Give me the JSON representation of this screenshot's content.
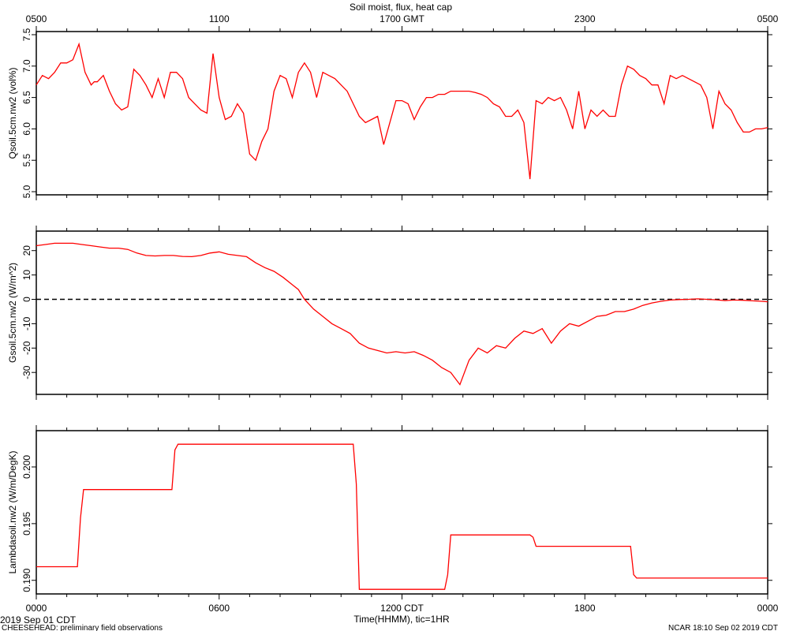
{
  "header": {
    "title": "Soil moist, flux, heat cap",
    "top_axis_ticks": [
      "0500",
      "1100",
      "1700 GMT",
      "2300",
      "0500"
    ]
  },
  "footer": {
    "date_label": "2019 Sep 01 CDT",
    "project_note": "CHEESEHEAD: preliminary field observations",
    "generated": "NCAR 18:10 Sep 02 2019 CDT",
    "x_axis_label": "Time(HHMM), tic=1HR"
  },
  "colors": {
    "series": "#ff0000",
    "axis": "#000000",
    "zero_line": "#000000"
  },
  "chart_data": [
    {
      "type": "line",
      "title": "Soil moist, flux, heat cap",
      "xlabel": "Time(HHMM), tic=1HR",
      "ylabel": "Qsoil.5cm.nw2 (vol%)",
      "xlim": [
        0,
        24
      ],
      "ylim": [
        4.95,
        7.55
      ],
      "yticks": [
        5.0,
        5.5,
        6.0,
        6.5,
        7.0,
        7.5
      ],
      "ytick_labels": [
        "5.0",
        "5.5",
        "6.0",
        "6.5",
        "7.0",
        "7.5"
      ],
      "x_units": "hours since 0000 CDT",
      "series": [
        {
          "x": [
            0,
            0.2,
            0.4,
            0.6,
            0.8,
            1.0,
            1.2,
            1.4,
            1.6,
            1.8,
            1.9,
            2.0,
            2.2,
            2.4,
            2.6,
            2.8,
            3.0,
            3.2,
            3.4,
            3.6,
            3.8,
            4.0,
            4.2,
            4.4,
            4.6,
            4.8,
            5.0,
            5.2,
            5.4,
            5.6,
            5.8,
            6.0,
            6.2,
            6.4,
            6.6,
            6.8,
            7.0,
            7.2,
            7.4,
            7.6,
            7.8,
            8.0,
            8.2,
            8.4,
            8.6,
            8.8,
            9.0,
            9.2,
            9.4,
            9.6,
            9.8,
            10.0,
            10.2,
            10.4,
            10.6,
            10.8,
            11.0,
            11.2,
            11.4,
            11.6,
            11.8,
            12.0,
            12.2,
            12.4,
            12.6,
            12.8,
            13.0,
            13.2,
            13.4,
            13.6,
            13.8,
            14.0,
            14.2,
            14.4,
            14.6,
            14.8,
            15.0,
            15.2,
            15.4,
            15.6,
            15.8,
            16.0,
            16.2,
            16.4,
            16.6,
            16.8,
            17.0,
            17.2,
            17.4,
            17.6,
            17.8,
            18.0,
            18.2,
            18.4,
            18.6,
            18.8,
            19.0,
            19.2,
            19.4,
            19.6,
            19.8,
            20.0,
            20.2,
            20.4,
            20.6,
            20.8,
            21.0,
            21.2,
            21.4,
            21.6,
            21.8,
            22.0,
            22.2,
            22.4,
            22.6,
            22.8,
            23.0,
            23.2,
            23.4,
            23.6,
            23.8,
            24.0
          ],
          "y": [
            6.7,
            6.85,
            6.8,
            6.9,
            7.05,
            7.05,
            7.1,
            7.35,
            6.9,
            6.7,
            6.75,
            6.75,
            6.85,
            6.6,
            6.4,
            6.3,
            6.35,
            6.95,
            6.85,
            6.7,
            6.5,
            6.8,
            6.5,
            6.9,
            6.9,
            6.8,
            6.5,
            6.4,
            6.3,
            6.25,
            7.2,
            6.5,
            6.15,
            6.2,
            6.4,
            6.25,
            5.6,
            5.5,
            5.8,
            6.0,
            6.6,
            6.85,
            6.8,
            6.5,
            6.9,
            7.05,
            6.9,
            6.5,
            6.9,
            6.85,
            6.8,
            6.7,
            6.6,
            6.4,
            6.2,
            6.1,
            6.15,
            6.2,
            5.75,
            6.1,
            6.45,
            6.45,
            6.4,
            6.15,
            6.35,
            6.5,
            6.5,
            6.55,
            6.55,
            6.6,
            6.6,
            6.6,
            6.6,
            6.58,
            6.55,
            6.5,
            6.4,
            6.35,
            6.2,
            6.2,
            6.3,
            6.1,
            5.2,
            6.45,
            6.4,
            6.5,
            6.45,
            6.5,
            6.3,
            6.0,
            6.6,
            6.0,
            6.3,
            6.2,
            6.3,
            6.2,
            6.2,
            6.7,
            7.0,
            6.95,
            6.85,
            6.8,
            6.7,
            6.7,
            6.4,
            6.85,
            6.8,
            6.85,
            6.8,
            6.75,
            6.7,
            6.5,
            6.0,
            6.6,
            6.4,
            6.3,
            6.1,
            5.95,
            5.95,
            6.0,
            6.0,
            6.02
          ]
        }
      ]
    },
    {
      "type": "line",
      "xlim": [
        0,
        24
      ],
      "ylim": [
        -39,
        28
      ],
      "ylabel": "Gsoil.5cm.nw2 (W/m^2)",
      "yticks": [
        -30,
        -20,
        -10,
        0,
        10,
        20
      ],
      "ytick_labels": [
        "-30",
        "-20",
        "-10",
        "0",
        "10",
        "20"
      ],
      "zero_line": true,
      "series": [
        {
          "x": [
            0,
            0.3,
            0.6,
            0.9,
            1.2,
            1.5,
            1.8,
            2.1,
            2.4,
            2.7,
            3.0,
            3.3,
            3.6,
            3.9,
            4.2,
            4.5,
            4.8,
            5.1,
            5.4,
            5.7,
            6.0,
            6.3,
            6.6,
            6.9,
            7.2,
            7.5,
            7.8,
            8.1,
            8.4,
            8.6,
            8.8,
            9.1,
            9.4,
            9.7,
            10.0,
            10.3,
            10.6,
            10.9,
            11.2,
            11.5,
            11.8,
            12.1,
            12.4,
            12.7,
            13.0,
            13.3,
            13.6,
            13.9,
            14.2,
            14.5,
            14.8,
            15.1,
            15.4,
            15.7,
            16.0,
            16.3,
            16.6,
            16.9,
            17.2,
            17.5,
            17.8,
            18.1,
            18.4,
            18.7,
            19.0,
            19.3,
            19.6,
            19.9,
            20.2,
            20.5,
            20.8,
            21.1,
            21.4,
            21.7,
            22.0,
            22.3,
            22.6,
            22.9,
            23.2,
            23.5,
            23.8,
            24.0
          ],
          "y": [
            22,
            22.5,
            23,
            23,
            23,
            22.5,
            22,
            21.5,
            21,
            21,
            20.5,
            19,
            18,
            17.8,
            18,
            18,
            17.6,
            17.5,
            18,
            19,
            19.5,
            18.5,
            18,
            17.5,
            15,
            13,
            11.5,
            9,
            6,
            4,
            0,
            -4,
            -7,
            -10,
            -12,
            -14,
            -18,
            -20,
            -21,
            -22,
            -21.5,
            -22,
            -21.5,
            -23,
            -25,
            -28,
            -30,
            -35,
            -25,
            -20,
            -22,
            -19,
            -20,
            -16,
            -13,
            -14,
            -12,
            -18,
            -13,
            -10,
            -11,
            -9,
            -7,
            -6.5,
            -5,
            -5,
            -4,
            -2.5,
            -1.5,
            -0.8,
            -0.3,
            -0.1,
            0,
            0.2,
            0,
            -0.2,
            -0.5,
            -0.3,
            -0.4,
            -0.6,
            -0.8,
            -1
          ]
        }
      ]
    },
    {
      "type": "line",
      "xlabel": "Time(HHMM), tic=1HR",
      "xlim": [
        0,
        24
      ],
      "ylim": [
        0.1888,
        0.2032
      ],
      "ylabel": "Lambdasoil.nw2 (W/m/DegK)",
      "yticks": [
        0.19,
        0.195,
        0.2
      ],
      "ytick_labels": [
        "0.190",
        "0.195",
        "0.200"
      ],
      "xticks": [
        0,
        6,
        12,
        18,
        24
      ],
      "xtick_labels": [
        "0000",
        "0600",
        "1200 CDT",
        "1800",
        "0000"
      ],
      "series": [
        {
          "x": [
            0,
            1.35,
            1.45,
            1.55,
            4.45,
            4.55,
            4.65,
            10.4,
            10.5,
            10.6,
            13.4,
            13.5,
            13.6,
            16.2,
            16.3,
            16.4,
            19.5,
            19.6,
            19.7,
            24.0
          ],
          "y": [
            0.1912,
            0.1912,
            0.1955,
            0.198,
            0.198,
            0.2015,
            0.202,
            0.202,
            0.1985,
            0.1892,
            0.1892,
            0.1905,
            0.194,
            0.194,
            0.1938,
            0.193,
            0.193,
            0.1905,
            0.1902,
            0.1902
          ]
        }
      ]
    }
  ]
}
